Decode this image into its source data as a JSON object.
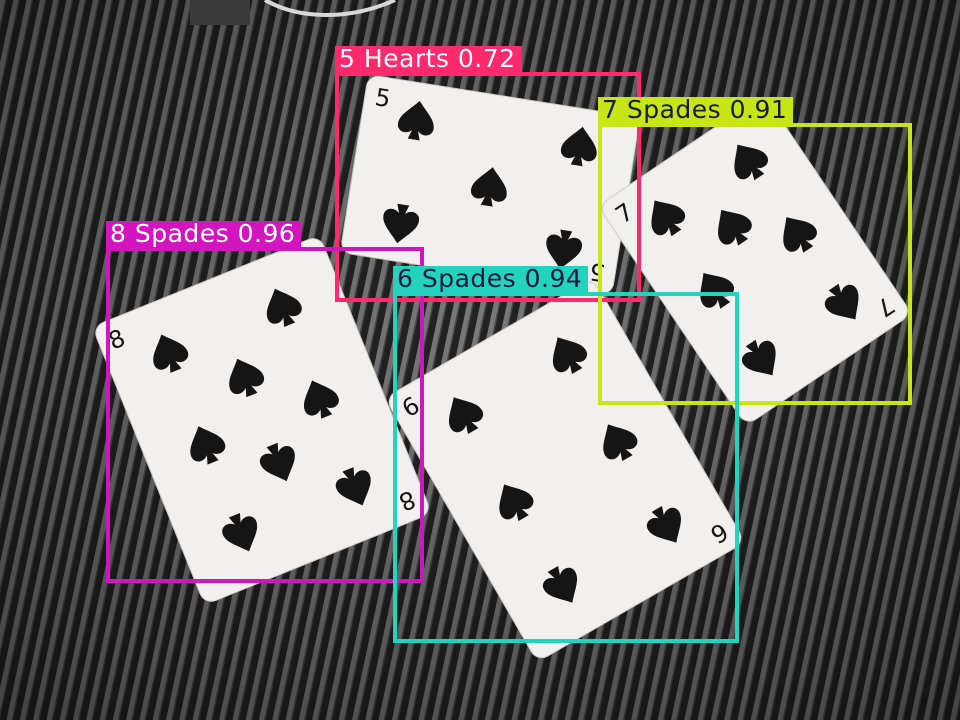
{
  "scene": {
    "background": "striped-fabric",
    "fabric_colors": {
      "base": "#242424",
      "stripe": "#7b7b7b"
    },
    "card_color": "#f2f0ee",
    "suit_color": "#151515"
  },
  "cards": [
    {
      "rank": "5",
      "suit": "spade-icon",
      "pips": 5
    },
    {
      "rank": "7",
      "suit": "spade-icon",
      "pips": 7
    },
    {
      "rank": "8",
      "suit": "spade-icon",
      "pips": 8
    },
    {
      "rank": "6",
      "suit": "spade-icon",
      "pips": 6
    }
  ],
  "detections": [
    {
      "label": "5 Hearts 0.72",
      "color": "#ff2a6e",
      "text_color": "#ffffff"
    },
    {
      "label": "7 Spades 0.91",
      "color": "#c8e516",
      "text_color": "#1a1a40"
    },
    {
      "label": "8 Spades 0.96",
      "color": "#d315c0",
      "text_color": "#ffffff"
    },
    {
      "label": "6 Spades 0.94",
      "color": "#22d3bd",
      "text_color": "#1a1a40"
    }
  ]
}
